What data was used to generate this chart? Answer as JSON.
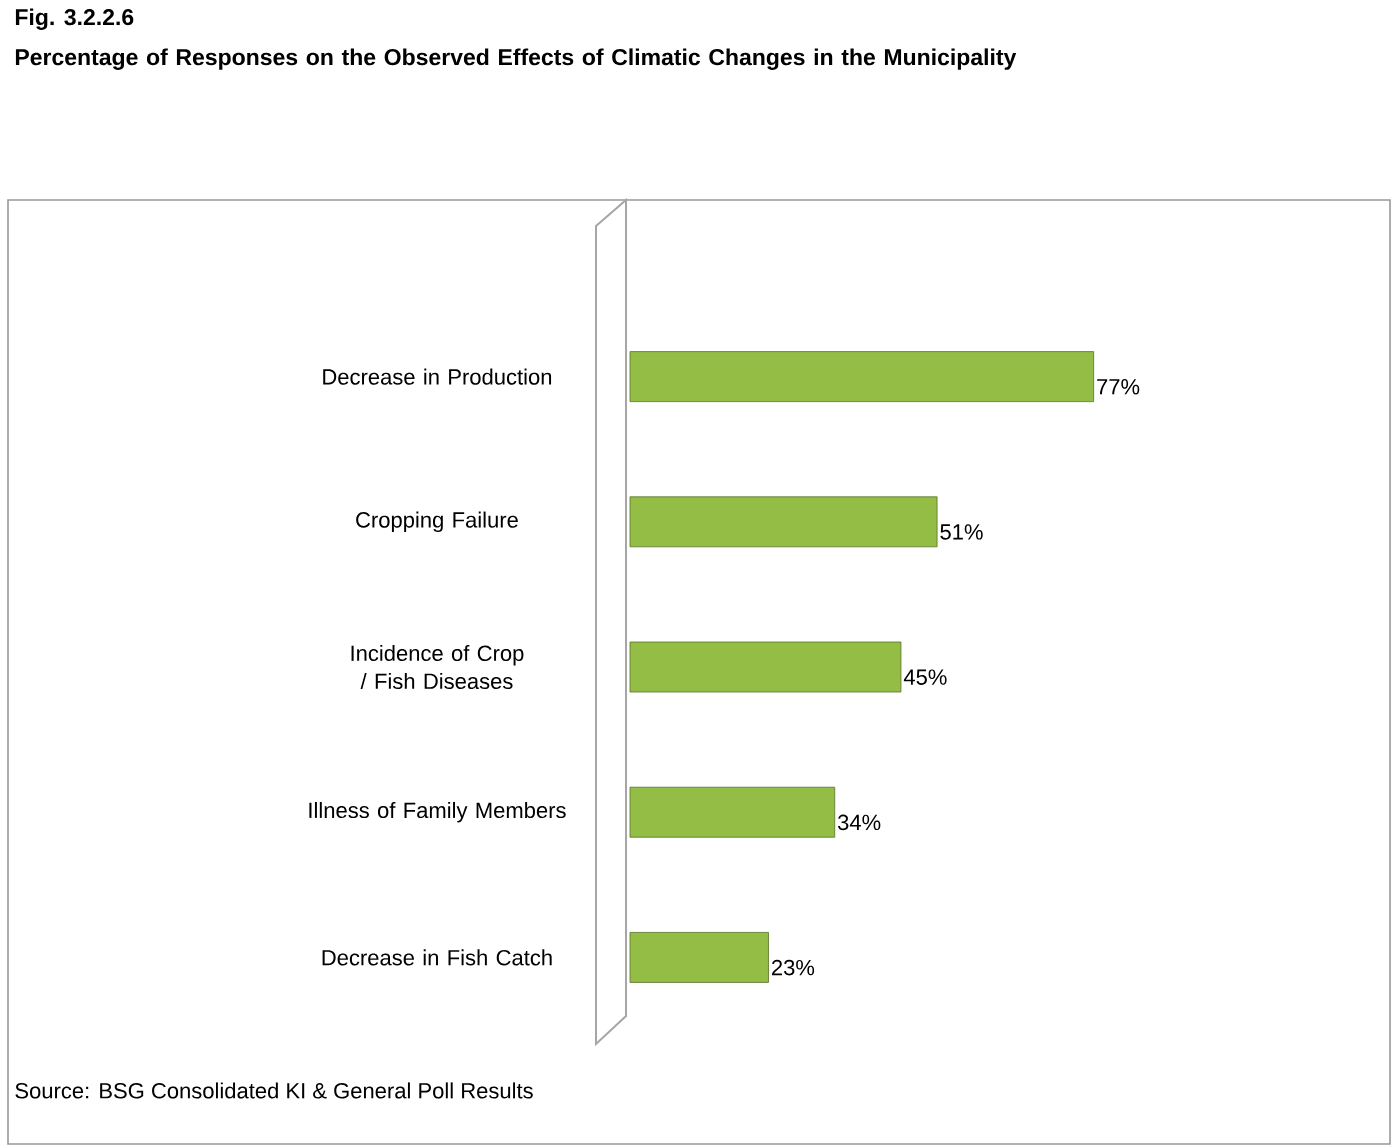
{
  "chart_data": {
    "type": "bar",
    "orientation": "horizontal",
    "title": "Fig. 3.2.2.6",
    "subtitle": "Percentage of Responses on the Observed Effects of Climatic Changes in the Municipality",
    "categories": [
      "Decrease in Production",
      "Cropping Failure",
      "Incidence of Crop / Fish Diseases",
      "Illness of Family Members",
      "Decrease in Fish Catch"
    ],
    "values": [
      77,
      51,
      45,
      34,
      23
    ],
    "value_labels": [
      "77%",
      "51%",
      "45%",
      "34%",
      "23%"
    ],
    "color": "#93bd45",
    "tick_labels": "y",
    "annotations": [
      "Source: BSG Consolidated KI & General Poll Results"
    ]
  }
}
